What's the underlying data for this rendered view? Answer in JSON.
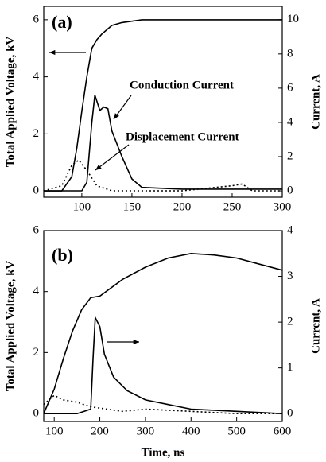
{
  "chart_data": [
    {
      "type": "line",
      "panel_label": "(a)",
      "y_label": "Total Applied Voltage, kV",
      "y2_label": "Current, A",
      "annotations": [
        "Conduction Current",
        "Displacement Current"
      ],
      "xlim": [
        62,
        300
      ],
      "xticks": [
        100,
        150,
        200,
        250,
        300
      ],
      "ylim": [
        -0.22,
        6.47
      ],
      "yticks": [
        0,
        2,
        4,
        6
      ],
      "y2lim": [
        -0.37,
        10.78
      ],
      "y2ticks": [
        0,
        2,
        4,
        6,
        8,
        10
      ],
      "series": [
        {
          "color": "#000000",
          "style": "solid",
          "x": [
            62,
            80,
            90,
            95,
            100,
            105,
            110,
            115,
            120,
            130,
            140,
            160,
            200,
            250,
            300
          ],
          "values": [
            0,
            0,
            0.5,
            1.5,
            2.8,
            4,
            5,
            5.3,
            5.5,
            5.8,
            5.9,
            6,
            6,
            6,
            6
          ]
        },
        {
          "color": "#000000",
          "style": "solid",
          "axis": "y2",
          "x": [
            62,
            100,
            105,
            110,
            113,
            118,
            122,
            126,
            130,
            140,
            150,
            160,
            200,
            300
          ],
          "values": [
            0,
            0,
            0.5,
            4,
            5.6,
            4.7,
            4.9,
            4.8,
            3.5,
            2,
            0.7,
            0.2,
            0.1,
            0.1
          ]
        },
        {
          "color": "#000000",
          "style": "dotted",
          "axis": "y2",
          "x": [
            62,
            80,
            90,
            97,
            105,
            115,
            130,
            200,
            250,
            260,
            270,
            300
          ],
          "values": [
            0,
            0.3,
            1.5,
            1.8,
            1.2,
            0.3,
            0,
            0,
            0.3,
            0.4,
            0,
            0
          ]
        }
      ]
    },
    {
      "type": "line",
      "panel_label": "(b)",
      "y_label": "Total Applied Voltage, kV",
      "y2_label": "Current, A",
      "x_label": "Time, ns",
      "xlim": [
        77,
        600
      ],
      "xticks": [
        100,
        200,
        300,
        400,
        500,
        600
      ],
      "ylim": [
        -0.26,
        6
      ],
      "yticks": [
        0,
        2,
        4,
        6
      ],
      "y2lim": [
        -0.17,
        4
      ],
      "y2ticks": [
        0,
        1,
        2,
        3,
        4
      ],
      "series": [
        {
          "color": "#000000",
          "style": "solid",
          "x": [
            77,
            100,
            120,
            140,
            160,
            180,
            200,
            250,
            300,
            350,
            400,
            450,
            500,
            550,
            600
          ],
          "values": [
            0,
            0.8,
            1.8,
            2.7,
            3.4,
            3.8,
            3.85,
            4.4,
            4.8,
            5.1,
            5.25,
            5.2,
            5.1,
            4.9,
            4.7
          ]
        },
        {
          "color": "#000000",
          "style": "solid",
          "axis": "y2",
          "x": [
            77,
            150,
            180,
            185,
            190,
            200,
            210,
            230,
            260,
            300,
            350,
            400,
            500,
            600
          ],
          "values": [
            0,
            0,
            0.1,
            1.2,
            2.1,
            1.9,
            1.3,
            0.8,
            0.5,
            0.3,
            0.2,
            0.1,
            0.05,
            0
          ]
        },
        {
          "color": "#000000",
          "style": "dotted",
          "axis": "y2",
          "x": [
            77,
            100,
            120,
            150,
            180,
            250,
            300,
            400,
            500,
            600
          ],
          "values": [
            0.2,
            0.4,
            0.3,
            0.25,
            0.15,
            0.05,
            0.1,
            0.05,
            0,
            0
          ]
        }
      ]
    }
  ]
}
